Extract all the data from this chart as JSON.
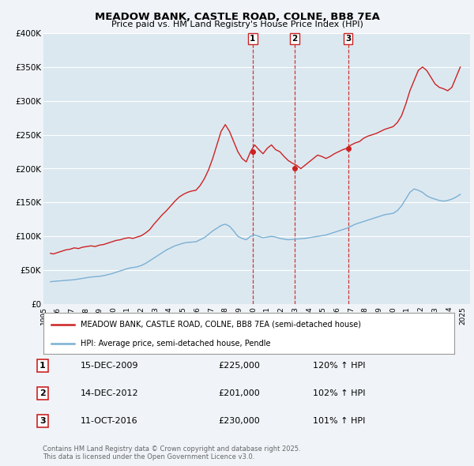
{
  "title": "MEADOW BANK, CASTLE ROAD, COLNE, BB8 7EA",
  "subtitle": "Price paid vs. HM Land Registry's House Price Index (HPI)",
  "red_label": "MEADOW BANK, CASTLE ROAD, COLNE, BB8 7EA (semi-detached house)",
  "blue_label": "HPI: Average price, semi-detached house, Pendle",
  "footer": "Contains HM Land Registry data © Crown copyright and database right 2025.\nThis data is licensed under the Open Government Licence v3.0.",
  "ylim": [
    0,
    400000
  ],
  "yticks": [
    0,
    50000,
    100000,
    150000,
    200000,
    250000,
    300000,
    350000,
    400000
  ],
  "ytick_labels": [
    "£0",
    "£50K",
    "£100K",
    "£150K",
    "£200K",
    "£250K",
    "£300K",
    "£350K",
    "£400K"
  ],
  "background_color": "#f0f4f8",
  "plot_bg_color": "#dce8f0",
  "grid_color": "#ffffff",
  "red_color": "#cc2222",
  "blue_color": "#7ab0d4",
  "vline_color": "#cc2222",
  "marker_color": "#cc2222",
  "annotations": [
    {
      "num": 1,
      "year": 2009.96,
      "price": 225000,
      "label": "1",
      "date": "15-DEC-2009",
      "price_str": "£225,000",
      "pct": "120% ↑ HPI"
    },
    {
      "num": 2,
      "year": 2012.96,
      "price": 201000,
      "label": "2",
      "date": "14-DEC-2012",
      "price_str": "£201,000",
      "pct": "102% ↑ HPI"
    },
    {
      "num": 3,
      "year": 2016.79,
      "price": 230000,
      "label": "3",
      "date": "11-OCT-2016",
      "price_str": "£230,000",
      "pct": "101% ↑ HPI"
    }
  ],
  "red_data": {
    "x": [
      1995.5,
      1995.7,
      1996.0,
      1996.3,
      1996.6,
      1996.9,
      1997.2,
      1997.5,
      1997.8,
      1998.1,
      1998.4,
      1998.7,
      1999.0,
      1999.3,
      1999.6,
      1999.9,
      2000.2,
      2000.5,
      2000.8,
      2001.1,
      2001.4,
      2001.7,
      2002.0,
      2002.3,
      2002.6,
      2002.9,
      2003.2,
      2003.5,
      2003.8,
      2004.1,
      2004.4,
      2004.7,
      2005.0,
      2005.3,
      2005.6,
      2005.9,
      2006.2,
      2006.5,
      2006.8,
      2007.1,
      2007.4,
      2007.7,
      2008.0,
      2008.3,
      2008.6,
      2008.9,
      2009.2,
      2009.5,
      2009.8,
      2010.1,
      2010.4,
      2010.7,
      2011.0,
      2011.3,
      2011.6,
      2011.9,
      2012.2,
      2012.5,
      2012.8,
      2013.1,
      2013.4,
      2013.7,
      2014.0,
      2014.3,
      2014.6,
      2014.9,
      2015.2,
      2015.5,
      2015.8,
      2016.1,
      2016.4,
      2016.7,
      2017.0,
      2017.3,
      2017.6,
      2017.9,
      2018.2,
      2018.5,
      2018.8,
      2019.1,
      2019.4,
      2019.7,
      2020.0,
      2020.3,
      2020.6,
      2020.9,
      2021.2,
      2021.5,
      2021.8,
      2022.1,
      2022.4,
      2022.7,
      2023.0,
      2023.3,
      2023.6,
      2023.9,
      2024.2,
      2024.5,
      2024.8
    ],
    "y": [
      75000,
      74000,
      76000,
      78000,
      80000,
      81000,
      83000,
      82000,
      84000,
      85000,
      86000,
      85000,
      87000,
      88000,
      90000,
      92000,
      94000,
      95000,
      97000,
      98000,
      97000,
      99000,
      101000,
      105000,
      110000,
      118000,
      125000,
      132000,
      138000,
      145000,
      152000,
      158000,
      162000,
      165000,
      167000,
      168000,
      175000,
      185000,
      198000,
      215000,
      235000,
      255000,
      265000,
      255000,
      240000,
      225000,
      215000,
      210000,
      225000,
      235000,
      228000,
      222000,
      230000,
      235000,
      228000,
      225000,
      218000,
      212000,
      208000,
      205000,
      200000,
      205000,
      210000,
      215000,
      220000,
      218000,
      215000,
      218000,
      222000,
      225000,
      228000,
      230000,
      235000,
      238000,
      240000,
      245000,
      248000,
      250000,
      252000,
      255000,
      258000,
      260000,
      262000,
      268000,
      278000,
      295000,
      315000,
      330000,
      345000,
      350000,
      345000,
      335000,
      325000,
      320000,
      318000,
      315000,
      320000,
      335000,
      350000
    ]
  },
  "blue_data": {
    "x": [
      1995.5,
      1995.7,
      1996.0,
      1996.3,
      1996.6,
      1996.9,
      1997.2,
      1997.5,
      1997.8,
      1998.1,
      1998.4,
      1998.7,
      1999.0,
      1999.3,
      1999.6,
      1999.9,
      2000.2,
      2000.5,
      2000.8,
      2001.1,
      2001.4,
      2001.7,
      2002.0,
      2002.3,
      2002.6,
      2002.9,
      2003.2,
      2003.5,
      2003.8,
      2004.1,
      2004.4,
      2004.7,
      2005.0,
      2005.3,
      2005.6,
      2005.9,
      2006.2,
      2006.5,
      2006.8,
      2007.1,
      2007.4,
      2007.7,
      2008.0,
      2008.3,
      2008.6,
      2008.9,
      2009.2,
      2009.5,
      2009.8,
      2010.1,
      2010.4,
      2010.7,
      2011.0,
      2011.3,
      2011.6,
      2011.9,
      2012.2,
      2012.5,
      2012.8,
      2013.1,
      2013.4,
      2013.7,
      2014.0,
      2014.3,
      2014.6,
      2014.9,
      2015.2,
      2015.5,
      2015.8,
      2016.1,
      2016.4,
      2016.7,
      2017.0,
      2017.3,
      2017.6,
      2017.9,
      2018.2,
      2018.5,
      2018.8,
      2019.1,
      2019.4,
      2019.7,
      2020.0,
      2020.3,
      2020.6,
      2020.9,
      2021.2,
      2021.5,
      2021.8,
      2022.1,
      2022.4,
      2022.7,
      2023.0,
      2023.3,
      2023.6,
      2023.9,
      2024.2,
      2024.5,
      2024.8
    ],
    "y": [
      33000,
      33500,
      34000,
      34500,
      35000,
      35500,
      36000,
      37000,
      38000,
      39000,
      40000,
      40500,
      41000,
      42000,
      43500,
      45000,
      47000,
      49000,
      51000,
      53000,
      54000,
      55000,
      57000,
      60000,
      64000,
      68000,
      72000,
      76000,
      80000,
      83000,
      86000,
      88000,
      90000,
      91000,
      91500,
      92000,
      95000,
      98000,
      103000,
      108000,
      112000,
      116000,
      118000,
      115000,
      108000,
      100000,
      97000,
      95000,
      100000,
      102000,
      100000,
      98000,
      99000,
      100000,
      99000,
      97000,
      96000,
      95000,
      95500,
      96000,
      96500,
      97000,
      98000,
      99000,
      100000,
      101000,
      102000,
      104000,
      106000,
      108000,
      110000,
      112000,
      115000,
      118000,
      120000,
      122000,
      124000,
      126000,
      128000,
      130000,
      132000,
      133000,
      134000,
      138000,
      145000,
      155000,
      165000,
      170000,
      168000,
      165000,
      160000,
      157000,
      155000,
      153000,
      152000,
      153000,
      155000,
      158000,
      162000
    ]
  }
}
